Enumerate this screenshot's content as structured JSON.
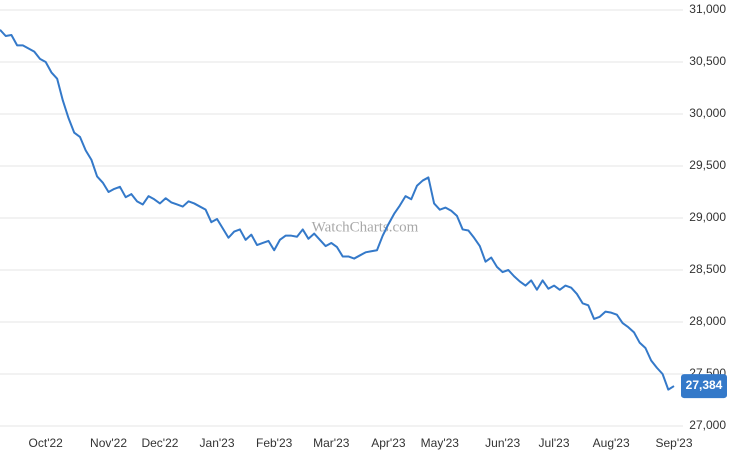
{
  "chart_data": {
    "type": "line",
    "watermark": "WatchCharts.com",
    "color": "#3479c9",
    "current_value_label": "27,384",
    "grid": true,
    "ylim": [
      27000,
      31000
    ],
    "yticks": [
      {
        "value": 27000,
        "label": "27,000"
      },
      {
        "value": 27500,
        "label": "27,500"
      },
      {
        "value": 28000,
        "label": "28,000"
      },
      {
        "value": 28500,
        "label": "28,500"
      },
      {
        "value": 29000,
        "label": "29,000"
      },
      {
        "value": 29500,
        "label": "29,500"
      },
      {
        "value": 30000,
        "label": "30,000"
      },
      {
        "value": 30500,
        "label": "30,500"
      },
      {
        "value": 31000,
        "label": "31,000"
      }
    ],
    "categories": [
      null,
      null,
      null,
      null,
      null,
      null,
      null,
      null,
      "Oct'22",
      null,
      null,
      null,
      null,
      null,
      null,
      null,
      null,
      null,
      null,
      "Nov'22",
      null,
      null,
      null,
      null,
      null,
      null,
      null,
      null,
      "Dec'22",
      null,
      null,
      null,
      null,
      null,
      null,
      null,
      null,
      null,
      "Jan'23",
      null,
      null,
      null,
      null,
      null,
      null,
      null,
      null,
      null,
      "Feb'23",
      null,
      null,
      null,
      null,
      null,
      null,
      null,
      null,
      null,
      "Mar'23",
      null,
      null,
      null,
      null,
      null,
      null,
      null,
      null,
      null,
      "Apr'23",
      null,
      null,
      null,
      null,
      null,
      null,
      null,
      null,
      "May'23",
      null,
      null,
      null,
      null,
      null,
      null,
      null,
      null,
      null,
      null,
      "Jun'23",
      null,
      null,
      null,
      null,
      null,
      null,
      null,
      null,
      "Jul'23",
      null,
      null,
      null,
      null,
      null,
      null,
      null,
      null,
      null,
      "Aug'23",
      null,
      null,
      null,
      null,
      null,
      null,
      null,
      null,
      null,
      null,
      "Sep'23"
    ],
    "values": [
      30810,
      30750,
      30760,
      30660,
      30660,
      30630,
      30600,
      30530,
      30500,
      30400,
      30340,
      30130,
      29960,
      29820,
      29780,
      29650,
      29560,
      29400,
      29340,
      29250,
      29280,
      29300,
      29200,
      29230,
      29160,
      29130,
      29210,
      29180,
      29140,
      29190,
      29150,
      29130,
      29110,
      29160,
      29140,
      29110,
      29080,
      28960,
      28990,
      28900,
      28810,
      28870,
      28890,
      28790,
      28840,
      28740,
      28760,
      28780,
      28690,
      28790,
      28830,
      28830,
      28820,
      28890,
      28800,
      28850,
      28790,
      28730,
      28760,
      28720,
      28630,
      28630,
      28610,
      28640,
      28670,
      28680,
      28690,
      28830,
      28940,
      29040,
      29120,
      29210,
      29180,
      29310,
      29360,
      29390,
      29140,
      29080,
      29100,
      29070,
      29020,
      28890,
      28880,
      28810,
      28730,
      28580,
      28620,
      28530,
      28480,
      28500,
      28440,
      28390,
      28350,
      28400,
      28310,
      28400,
      28320,
      28350,
      28310,
      28350,
      28330,
      28270,
      28180,
      28160,
      28030,
      28050,
      28100,
      28090,
      28070,
      27990,
      27950,
      27900,
      27800,
      27750,
      27630,
      27560,
      27500,
      27350,
      27384
    ]
  }
}
